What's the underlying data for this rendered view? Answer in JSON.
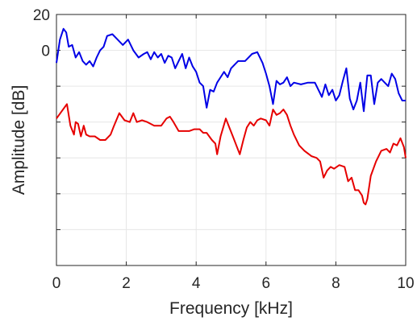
{
  "chart_data": {
    "type": "line",
    "title": "",
    "xlabel": "Frequency [kHz]",
    "ylabel": "Amplitude [dB]",
    "xlim": [
      0,
      10
    ],
    "ylim": [
      -120,
      20
    ],
    "grid": true,
    "legend": "none",
    "x_ticks": [
      0,
      2,
      4,
      6,
      8,
      10
    ],
    "x_tick_labels": [
      "0",
      "2",
      "4",
      "6",
      "8",
      "10"
    ],
    "y_ticks": [
      -120,
      -100,
      -80,
      -60,
      -40,
      -20,
      0,
      20
    ],
    "y_tick_labels": [
      "",
      "",
      "",
      "",
      "",
      "",
      "0",
      "20"
    ],
    "series": [
      {
        "color": "#0000e6",
        "x": [
          0,
          0.1,
          0.2,
          0.28,
          0.35,
          0.45,
          0.55,
          0.65,
          0.75,
          0.85,
          0.95,
          1.05,
          1.15,
          1.25,
          1.35,
          1.45,
          1.6,
          1.75,
          1.9,
          2.05,
          2.2,
          2.35,
          2.5,
          2.6,
          2.7,
          2.8,
          2.9,
          3.0,
          3.1,
          3.2,
          3.3,
          3.4,
          3.5,
          3.6,
          3.7,
          3.8,
          3.9,
          4.0,
          4.1,
          4.2,
          4.3,
          4.4,
          4.5,
          4.6,
          4.7,
          4.8,
          4.9,
          5.0,
          5.2,
          5.4,
          5.6,
          5.75,
          5.9,
          6.0,
          6.1,
          6.2,
          6.3,
          6.4,
          6.5,
          6.6,
          6.7,
          6.8,
          7.0,
          7.2,
          7.4,
          7.6,
          7.7,
          7.8,
          7.9,
          8.0,
          8.1,
          8.2,
          8.3,
          8.4,
          8.5,
          8.6,
          8.7,
          8.8,
          8.9,
          9.0,
          9.1,
          9.2,
          9.3,
          9.4,
          9.5,
          9.6,
          9.7,
          9.8,
          9.9,
          10.0
        ],
        "y": [
          -7,
          6,
          12,
          10,
          2,
          3,
          -4,
          -1,
          -6,
          -8,
          -6,
          -9,
          -4,
          0,
          2,
          8,
          9,
          6,
          3,
          6,
          0,
          -4,
          -2,
          -1,
          -5,
          -1,
          -4,
          -2,
          -7,
          -3,
          -4,
          -10,
          -6,
          -2,
          -10,
          -4,
          -9,
          -12,
          -18,
          -20,
          -32,
          -22,
          -23,
          -18,
          -15,
          -12,
          -15,
          -10,
          -6,
          -6,
          -2,
          -1,
          -7,
          -13,
          -20,
          -30,
          -17,
          -19,
          -18,
          -15,
          -20,
          -18,
          -19,
          -18,
          -18,
          -26,
          -19,
          -25,
          -22,
          -28,
          -25,
          -17,
          -10,
          -27,
          -33,
          -28,
          -18,
          -34,
          -14,
          -14,
          -30,
          -18,
          -16,
          -18,
          -20,
          -13,
          -16,
          -24,
          -28,
          -28
        ]
      },
      {
        "color": "#e60000",
        "x": [
          0,
          0.15,
          0.3,
          0.4,
          0.5,
          0.55,
          0.62,
          0.7,
          0.78,
          0.85,
          0.95,
          1.1,
          1.25,
          1.4,
          1.55,
          1.65,
          1.8,
          1.95,
          2.1,
          2.2,
          2.3,
          2.45,
          2.6,
          2.8,
          3.0,
          3.15,
          3.25,
          3.35,
          3.5,
          3.65,
          3.8,
          3.95,
          4.1,
          4.2,
          4.3,
          4.45,
          4.55,
          4.6,
          4.7,
          4.85,
          4.95,
          5.05,
          5.15,
          5.25,
          5.35,
          5.45,
          5.55,
          5.65,
          5.75,
          5.85,
          6.0,
          6.1,
          6.2,
          6.3,
          6.4,
          6.5,
          6.6,
          6.7,
          6.8,
          6.95,
          7.1,
          7.3,
          7.45,
          7.55,
          7.65,
          7.75,
          7.85,
          7.95,
          8.1,
          8.25,
          8.35,
          8.45,
          8.55,
          8.65,
          8.75,
          8.8,
          8.85,
          8.9,
          9.0,
          9.15,
          9.3,
          9.45,
          9.55,
          9.65,
          9.75,
          9.85,
          9.95,
          10.0
        ],
        "y": [
          -38,
          -34,
          -30,
          -42,
          -47,
          -40,
          -41,
          -48,
          -42,
          -47,
          -48,
          -48,
          -50,
          -50,
          -47,
          -42,
          -35,
          -39,
          -40,
          -35,
          -40,
          -39,
          -40,
          -42,
          -42,
          -38,
          -37,
          -40,
          -45,
          -45,
          -45,
          -44,
          -44,
          -46,
          -46,
          -50,
          -52,
          -58,
          -48,
          -38,
          -43,
          -48,
          -53,
          -58,
          -50,
          -43,
          -40,
          -42,
          -39,
          -38,
          -39,
          -42,
          -33,
          -36,
          -35,
          -33,
          -36,
          -42,
          -47,
          -53,
          -56,
          -59,
          -60,
          -62,
          -71,
          -67,
          -65,
          -66,
          -64,
          -65,
          -73,
          -71,
          -78,
          -78,
          -81,
          -85,
          -86,
          -83,
          -70,
          -62,
          -56,
          -55,
          -57,
          -52,
          -53,
          -49,
          -54,
          -60
        ]
      }
    ]
  }
}
